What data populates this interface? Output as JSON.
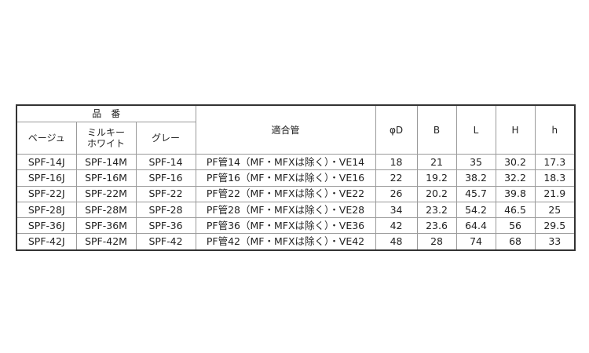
{
  "table": {
    "group_header": "品　番",
    "headers": {
      "beige": "ベージュ",
      "milky_white_line1": "ミルキー",
      "milky_white_line2": "ホワイト",
      "gray": "グレー",
      "pipe": "適合管",
      "phiD": "φD",
      "B": "B",
      "L": "L",
      "H": "H",
      "h": "h"
    },
    "rows": [
      [
        "SPF-14J",
        "SPF-14M",
        "SPF-14",
        "PF管14（MF・MFXは除く）・VE14",
        "18",
        "21",
        "35",
        "30.2",
        "17.3"
      ],
      [
        "SPF-16J",
        "SPF-16M",
        "SPF-16",
        "PF管16（MF・MFXは除く）・VE16",
        "22",
        "19.2",
        "38.2",
        "32.2",
        "18.3"
      ],
      [
        "SPF-22J",
        "SPF-22M",
        "SPF-22",
        "PF管22（MF・MFXは除く）・VE22",
        "26",
        "20.2",
        "45.7",
        "39.8",
        "21.9"
      ],
      [
        "SPF-28J",
        "SPF-28M",
        "SPF-28",
        "PF管28（MF・MFXは除く）・VE28",
        "34",
        "23.2",
        "54.2",
        "46.5",
        "25"
      ],
      [
        "SPF-36J",
        "SPF-36M",
        "SPF-36",
        "PF管36（MF・MFXは除く）・VE36",
        "42",
        "23.6",
        "64.4",
        "56",
        "29.5"
      ],
      [
        "SPF-42J",
        "SPF-42M",
        "SPF-42",
        "PF管42（MF・MFXは除く）・VE42",
        "48",
        "28",
        "74",
        "68",
        "33"
      ]
    ]
  }
}
